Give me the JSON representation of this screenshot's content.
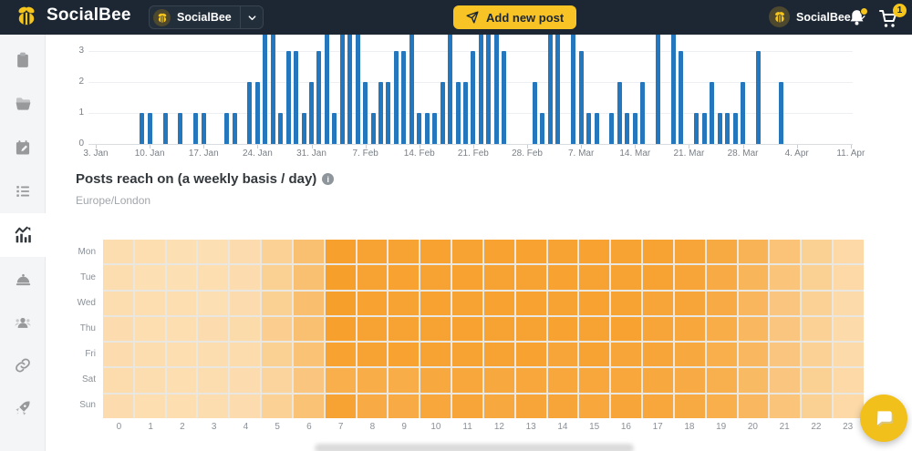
{
  "header": {
    "brand": "SocialBee",
    "workspace": {
      "name": "SocialBee",
      "icon": "bee-avatar-icon"
    },
    "add_post_label": "Add new post",
    "add_post_icon": "paper-plane-icon",
    "account": {
      "name": "SocialBee",
      "icon": "bee-avatar-icon"
    },
    "notifications_icon": "bell-icon",
    "cart_icon": "cart-icon",
    "cart_badge": "1",
    "colors": {
      "bar_bg": "#1C2733",
      "accent_yellow": "#F7C325"
    }
  },
  "sidebar": {
    "items": [
      {
        "icon": "clipboard-icon",
        "active": false
      },
      {
        "icon": "folder-icon",
        "active": false
      },
      {
        "icon": "calendar-icon",
        "active": false
      },
      {
        "icon": "list-icon",
        "active": false
      },
      {
        "icon": "analytics-icon",
        "active": true
      },
      {
        "icon": "concierge-bell-icon",
        "active": false
      },
      {
        "icon": "users-icon",
        "active": false
      },
      {
        "icon": "link-icon",
        "active": false
      },
      {
        "icon": "rocket-icon",
        "active": false
      }
    ]
  },
  "reach_section": {
    "title": "Posts reach on (a weekly basis / day)",
    "info_icon": "info-icon",
    "timezone": "Europe/London"
  },
  "chat_fab_icon": "chat-bubble-icon",
  "chart_data": [
    {
      "type": "bar",
      "note": "Daily posts chart, top of plot clipped by page scroll; values of 4 render as bars cut off at top",
      "bar_color": "#2577BD",
      "gridline_color": "#EDEFF2",
      "y_ticks": [
        0,
        1,
        2,
        3
      ],
      "ylim_visible": [
        0,
        3.5
      ],
      "x_tick_labels": [
        "3. Jan",
        "10. Jan",
        "17. Jan",
        "24. Jan",
        "31. Jan",
        "7. Feb",
        "14. Feb",
        "21. Feb",
        "28. Feb",
        "7. Mar",
        "14. Mar",
        "21. Mar",
        "28. Mar",
        "4. Apr",
        "11. Apr"
      ],
      "x": [
        "3. Jan",
        "4. Jan",
        "5. Jan",
        "6. Jan",
        "7. Jan",
        "8. Jan",
        "9. Jan",
        "10. Jan",
        "11. Jan",
        "12. Jan",
        "13. Jan",
        "14. Jan",
        "15. Jan",
        "16. Jan",
        "17. Jan",
        "18. Jan",
        "19. Jan",
        "20. Jan",
        "21. Jan",
        "22. Jan",
        "23. Jan",
        "24. Jan",
        "25. Jan",
        "26. Jan",
        "27. Jan",
        "28. Jan",
        "29. Jan",
        "30. Jan",
        "31. Jan",
        "1. Feb",
        "2. Feb",
        "3. Feb",
        "4. Feb",
        "5. Feb",
        "6. Feb",
        "7. Feb",
        "8. Feb",
        "9. Feb",
        "10. Feb",
        "11. Feb",
        "12. Feb",
        "13. Feb",
        "14. Feb",
        "15. Feb",
        "16. Feb",
        "17. Feb",
        "18. Feb",
        "19. Feb",
        "20. Feb",
        "21. Feb",
        "22. Feb",
        "23. Feb",
        "24. Feb",
        "25. Feb",
        "26. Feb",
        "27. Feb",
        "28. Feb",
        "1. Mar",
        "2. Mar",
        "3. Mar",
        "4. Mar",
        "5. Mar",
        "6. Mar",
        "7. Mar",
        "8. Mar",
        "9. Mar",
        "10. Mar",
        "11. Mar",
        "12. Mar",
        "13. Mar",
        "14. Mar",
        "15. Mar",
        "16. Mar",
        "17. Mar",
        "18. Mar",
        "19. Mar",
        "20. Mar",
        "21. Mar",
        "22. Mar",
        "23. Mar",
        "24. Mar",
        "25. Mar",
        "26. Mar",
        "27. Mar",
        "28. Mar",
        "29. Mar",
        "30. Mar",
        "31. Mar",
        "1. Apr",
        "2. Apr",
        "3. Apr",
        "4. Apr",
        "5. Apr",
        "6. Apr",
        "7. Apr",
        "8. Apr",
        "9. Apr",
        "10. Apr",
        "11. Apr"
      ],
      "values": [
        0,
        0,
        0,
        0,
        0,
        0,
        1,
        1,
        0,
        1,
        0,
        1,
        0,
        1,
        1,
        0,
        0,
        1,
        1,
        0,
        2,
        2,
        4,
        4,
        1,
        3,
        3,
        1,
        2,
        3,
        4,
        1,
        4,
        4,
        4,
        2,
        1,
        2,
        2,
        3,
        3,
        4,
        1,
        1,
        1,
        2,
        4,
        2,
        2,
        3,
        4,
        4,
        4,
        3,
        0,
        0,
        0,
        2,
        1,
        4,
        4,
        0,
        4,
        3,
        1,
        1,
        0,
        1,
        2,
        1,
        1,
        2,
        0,
        4,
        0,
        4,
        3,
        0,
        1,
        1,
        2,
        1,
        1,
        1,
        2,
        0,
        3,
        0,
        0,
        2,
        0,
        0,
        0,
        0,
        0,
        0,
        0,
        0,
        0
      ]
    },
    {
      "type": "heatmap",
      "title": "Posts reach on (a weekly basis / day)",
      "subtitle": "Europe/London",
      "rows": [
        "Mon",
        "Tue",
        "Wed",
        "Thu",
        "Fri",
        "Sat",
        "Sun"
      ],
      "cols": [
        "0",
        "1",
        "2",
        "3",
        "4",
        "5",
        "6",
        "7",
        "8",
        "9",
        "10",
        "11",
        "12",
        "13",
        "14",
        "15",
        "16",
        "17",
        "18",
        "19",
        "20",
        "21",
        "22",
        "23"
      ],
      "low_color": "#FDE9C9",
      "high_color": "#F69A20",
      "intensities": [
        [
          0.15,
          0.14,
          0.13,
          0.13,
          0.16,
          0.3,
          0.52,
          0.92,
          0.88,
          0.88,
          0.9,
          0.88,
          0.9,
          0.9,
          0.88,
          0.9,
          0.88,
          0.88,
          0.86,
          0.8,
          0.68,
          0.48,
          0.32,
          0.2
        ],
        [
          0.15,
          0.13,
          0.13,
          0.14,
          0.16,
          0.32,
          0.52,
          0.94,
          0.88,
          0.9,
          0.88,
          0.9,
          0.88,
          0.88,
          0.9,
          0.88,
          0.88,
          0.88,
          0.86,
          0.78,
          0.66,
          0.46,
          0.32,
          0.2
        ],
        [
          0.15,
          0.14,
          0.14,
          0.13,
          0.16,
          0.32,
          0.54,
          0.94,
          0.9,
          0.88,
          0.9,
          0.88,
          0.9,
          0.9,
          0.88,
          0.9,
          0.88,
          0.86,
          0.86,
          0.78,
          0.64,
          0.44,
          0.3,
          0.19
        ],
        [
          0.16,
          0.14,
          0.14,
          0.16,
          0.18,
          0.34,
          0.52,
          0.92,
          0.88,
          0.88,
          0.88,
          0.9,
          0.88,
          0.88,
          0.9,
          0.88,
          0.9,
          0.86,
          0.84,
          0.76,
          0.62,
          0.44,
          0.3,
          0.19
        ],
        [
          0.16,
          0.15,
          0.14,
          0.15,
          0.17,
          0.32,
          0.5,
          0.9,
          0.88,
          0.9,
          0.88,
          0.88,
          0.88,
          0.9,
          0.86,
          0.88,
          0.86,
          0.86,
          0.82,
          0.74,
          0.62,
          0.44,
          0.3,
          0.19
        ],
        [
          0.17,
          0.15,
          0.14,
          0.15,
          0.16,
          0.26,
          0.44,
          0.74,
          0.76,
          0.76,
          0.82,
          0.84,
          0.82,
          0.84,
          0.84,
          0.84,
          0.84,
          0.82,
          0.78,
          0.72,
          0.6,
          0.44,
          0.32,
          0.2
        ],
        [
          0.16,
          0.14,
          0.14,
          0.15,
          0.16,
          0.3,
          0.5,
          0.88,
          0.78,
          0.78,
          0.84,
          0.86,
          0.82,
          0.86,
          0.86,
          0.84,
          0.86,
          0.84,
          0.8,
          0.74,
          0.62,
          0.46,
          0.32,
          0.2
        ]
      ]
    }
  ]
}
